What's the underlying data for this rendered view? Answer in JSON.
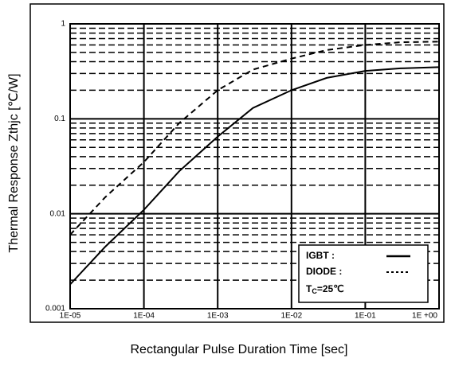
{
  "chart_data": {
    "type": "line",
    "xlabel": "Rectangular Pulse Duration Time [sec]",
    "ylabel": "Thermal Response Zthjc [℃/W]",
    "x": [
      1e-05,
      3e-05,
      0.0001,
      0.0003,
      0.001,
      0.003,
      0.01,
      0.03,
      0.1,
      0.3,
      1
    ],
    "series": [
      {
        "name": "IGBT :",
        "color": "#000000",
        "dash": "solid",
        "values": [
          0.0018,
          0.0045,
          0.011,
          0.028,
          0.065,
          0.13,
          0.2,
          0.27,
          0.32,
          0.34,
          0.35
        ]
      },
      {
        "name": "DIODE :",
        "color": "#000000",
        "dash": "dashed",
        "values": [
          0.006,
          0.015,
          0.035,
          0.09,
          0.2,
          0.33,
          0.43,
          0.53,
          0.6,
          0.64,
          0.65
        ]
      }
    ],
    "annotation": [
      "T",
      "C",
      "=25℃"
    ],
    "log_x": true,
    "log_y": true,
    "xlim": [
      1e-05,
      1
    ],
    "ylim": [
      0.001,
      1
    ],
    "xticks": [
      {
        "value": 1e-05,
        "label": "1E-05"
      },
      {
        "value": 0.0001,
        "label": "1E-04"
      },
      {
        "value": 0.001,
        "label": "1E-03"
      },
      {
        "value": 0.01,
        "label": "1E-02"
      },
      {
        "value": 0.1,
        "label": "1E-01"
      },
      {
        "value": 1,
        "label": "1E +00"
      }
    ],
    "yticks": [
      0.001,
      0.01,
      0.1,
      1
    ],
    "y_minor_ticks": [
      0.002,
      0.003,
      0.004,
      0.005,
      0.006,
      0.007,
      0.008,
      0.009,
      0.02,
      0.03,
      0.04,
      0.05,
      0.06,
      0.07,
      0.08,
      0.09,
      0.2,
      0.3,
      0.4,
      0.5,
      0.6,
      0.7,
      0.8,
      0.9
    ],
    "grid": true,
    "legend": "lower right"
  }
}
